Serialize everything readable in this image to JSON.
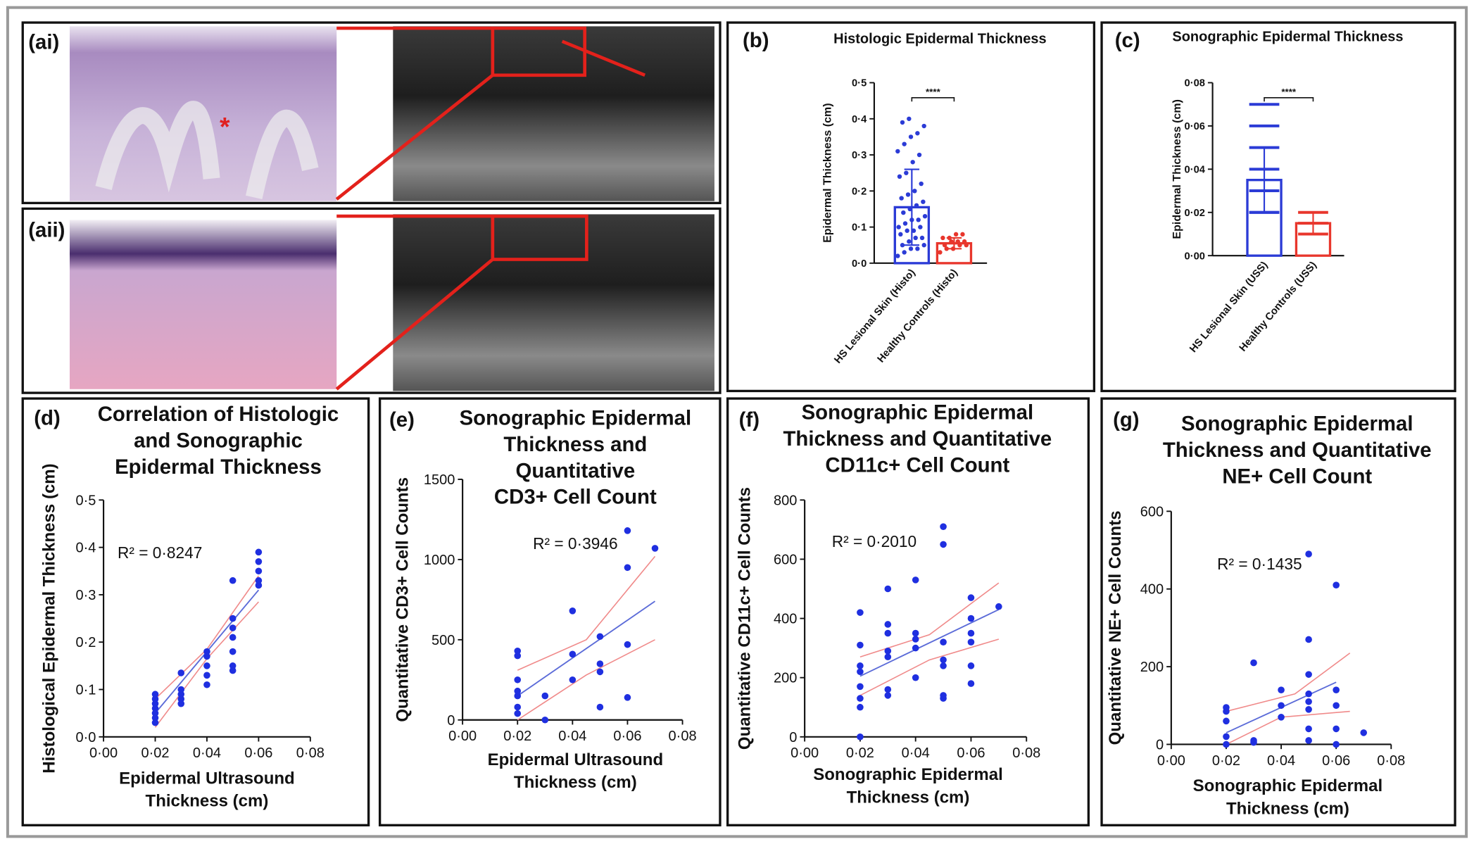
{
  "images": [
    {
      "label": "(ai)"
    },
    {
      "label": "(aii)"
    }
  ],
  "chart_data": [
    {
      "type": "bar",
      "panel_label": "(b)",
      "title": [
        "Histologic Epidermal Thickness"
      ],
      "y_label": "Epidermal Thickness (cm)",
      "categories": [
        "HS Lesional Skin (Histo)",
        "Healthy Controls (Histo)"
      ],
      "values": [
        0.155,
        0.055
      ],
      "errors": [
        0.105,
        0.015
      ],
      "points": [
        [
          0.02,
          0.03,
          0.04,
          0.04,
          0.05,
          0.05,
          0.06,
          0.07,
          0.07,
          0.08,
          0.09,
          0.09,
          0.1,
          0.1,
          0.11,
          0.12,
          0.12,
          0.13,
          0.14,
          0.15,
          0.16,
          0.17,
          0.18,
          0.19,
          0.2,
          0.22,
          0.24,
          0.25,
          0.28,
          0.3,
          0.31,
          0.33,
          0.35,
          0.36,
          0.38,
          0.39,
          0.4
        ],
        [
          0.03,
          0.04,
          0.04,
          0.05,
          0.05,
          0.05,
          0.06,
          0.06,
          0.06,
          0.07,
          0.07,
          0.08,
          0.08
        ]
      ],
      "point_style": "dot",
      "colors": [
        "#2b3bd6",
        "#e8362c"
      ],
      "significance": "****",
      "ylim": [
        0,
        0.5
      ],
      "yticks": [
        {
          "value": 0,
          "label": "0·0"
        },
        {
          "value": 0.1,
          "label": "0·1"
        },
        {
          "value": 0.2,
          "label": "0·2"
        },
        {
          "value": 0.3,
          "label": "0·3"
        },
        {
          "value": 0.4,
          "label": "0·4"
        },
        {
          "value": 0.5,
          "label": "0·5"
        }
      ]
    },
    {
      "type": "bar",
      "panel_label": "(c)",
      "title": [
        "Sonographic Epidermal Thickness"
      ],
      "y_label": "Epidermal Thickness (cm)",
      "categories": [
        "HS Lesional Skin (USS)",
        "Healthy Controls (USS)"
      ],
      "values": [
        0.035,
        0.015
      ],
      "errors": [
        0.015,
        0.005
      ],
      "points": [
        [
          0.02,
          0.02,
          0.03,
          0.04,
          0.05,
          0.06,
          0.07
        ],
        [
          0.01,
          0.015,
          0.02
        ]
      ],
      "point_style": "dash",
      "colors": [
        "#2b3bd6",
        "#e8362c"
      ],
      "significance": "****",
      "ylim": [
        0,
        0.08
      ],
      "yticks": [
        {
          "value": 0,
          "label": "0·00"
        },
        {
          "value": 0.02,
          "label": "0·02"
        },
        {
          "value": 0.04,
          "label": "0·04"
        },
        {
          "value": 0.06,
          "label": "0·06"
        },
        {
          "value": 0.08,
          "label": "0·08"
        }
      ]
    },
    {
      "type": "scatter",
      "panel_label": "(d)",
      "title": [
        "Correlation of Histologic",
        "and Sonographic",
        "Epidermal Thickness"
      ],
      "x_label": [
        "Epidermal Ultrasound",
        "Thickness (cm)"
      ],
      "y_label": "Histological Epidermal Thickness (cm)",
      "annotation": "R² = 0·8247",
      "color": "#1f2fe0",
      "x": [
        0.02,
        0.02,
        0.02,
        0.02,
        0.02,
        0.02,
        0.02,
        0.03,
        0.03,
        0.03,
        0.03,
        0.03,
        0.04,
        0.04,
        0.04,
        0.04,
        0.04,
        0.05,
        0.05,
        0.05,
        0.05,
        0.05,
        0.05,
        0.05,
        0.06,
        0.06,
        0.06,
        0.06,
        0.06
      ],
      "y": [
        0.03,
        0.04,
        0.05,
        0.06,
        0.07,
        0.08,
        0.09,
        0.07,
        0.08,
        0.09,
        0.1,
        0.135,
        0.11,
        0.13,
        0.15,
        0.17,
        0.18,
        0.14,
        0.15,
        0.18,
        0.21,
        0.23,
        0.25,
        0.33,
        0.32,
        0.33,
        0.35,
        0.37,
        0.39
      ],
      "fit": {
        "x": [
          0.02,
          0.06
        ],
        "y": [
          0.05,
          0.31
        ],
        "color": "#5b6bd8"
      },
      "ci": [
        {
          "x": [
            0.02,
            0.04,
            0.06
          ],
          "y": [
            0.08,
            0.185,
            0.34
          ],
          "color": "#f08a8a"
        },
        {
          "x": [
            0.02,
            0.04,
            0.06
          ],
          "y": [
            0.02,
            0.165,
            0.285
          ],
          "color": "#f08a8a"
        }
      ],
      "xlim": [
        0,
        0.08
      ],
      "ylim": [
        0,
        0.5
      ],
      "xticks": [
        {
          "value": 0,
          "label": "0·00"
        },
        {
          "value": 0.02,
          "label": "0·02"
        },
        {
          "value": 0.04,
          "label": "0·04"
        },
        {
          "value": 0.06,
          "label": "0·06"
        },
        {
          "value": 0.08,
          "label": "0·08"
        }
      ],
      "yticks": [
        {
          "value": 0,
          "label": "0·0"
        },
        {
          "value": 0.1,
          "label": "0·1"
        },
        {
          "value": 0.2,
          "label": "0·2"
        },
        {
          "value": 0.3,
          "label": "0·3"
        },
        {
          "value": 0.4,
          "label": "0·4"
        },
        {
          "value": 0.5,
          "label": "0·5"
        }
      ]
    },
    {
      "type": "scatter",
      "panel_label": "(e)",
      "title": [
        "Sonographic Epidermal",
        "Thickness and",
        "Quantitative",
        "CD3+ Cell Count"
      ],
      "x_label": [
        "Epidermal Ultrasound",
        "Thickness (cm)"
      ],
      "y_label": "Quantitative CD3+ Cell Counts",
      "annotation": "R² = 0·3946",
      "color": "#1f2fe0",
      "x": [
        0.02,
        0.02,
        0.02,
        0.02,
        0.02,
        0.02,
        0.02,
        0.03,
        0.03,
        0.04,
        0.04,
        0.04,
        0.05,
        0.05,
        0.05,
        0.05,
        0.06,
        0.06,
        0.06,
        0.06,
        0.07
      ],
      "y": [
        40,
        80,
        150,
        180,
        250,
        400,
        430,
        0,
        150,
        250,
        410,
        680,
        80,
        300,
        350,
        520,
        140,
        470,
        950,
        1180,
        1070
      ],
      "fit": {
        "x": [
          0.02,
          0.07
        ],
        "y": [
          150,
          740
        ],
        "color": "#5b6bd8"
      },
      "ci": [
        {
          "x": [
            0.02,
            0.045,
            0.07
          ],
          "y": [
            310,
            500,
            1020
          ],
          "color": "#f08a8a"
        },
        {
          "x": [
            0.02,
            0.045,
            0.07
          ],
          "y": [
            0,
            280,
            500
          ],
          "color": "#f08a8a"
        }
      ],
      "xlim": [
        0,
        0.08
      ],
      "ylim": [
        0,
        1500
      ],
      "xticks": [
        {
          "value": 0,
          "label": "0·00"
        },
        {
          "value": 0.02,
          "label": "0·02"
        },
        {
          "value": 0.04,
          "label": "0·04"
        },
        {
          "value": 0.06,
          "label": "0·06"
        },
        {
          "value": 0.08,
          "label": "0·08"
        }
      ],
      "yticks": [
        0,
        500,
        1000,
        1500
      ]
    },
    {
      "type": "scatter",
      "panel_label": "(f)",
      "title": [
        "Sonographic Epidermal",
        "Thickness and Quantitative",
        "CD11c+ Cell Count"
      ],
      "x_label": [
        "Sonographic Epidermal",
        "Thickness (cm)"
      ],
      "y_label": "Quantitative CD11c+ Cell Counts",
      "annotation": "R² = 0·2010",
      "color": "#1f2fe0",
      "x": [
        0.02,
        0.02,
        0.02,
        0.02,
        0.02,
        0.02,
        0.02,
        0.02,
        0.03,
        0.03,
        0.03,
        0.03,
        0.03,
        0.03,
        0.03,
        0.04,
        0.04,
        0.04,
        0.04,
        0.04,
        0.05,
        0.05,
        0.05,
        0.05,
        0.05,
        0.05,
        0.05,
        0.06,
        0.06,
        0.06,
        0.06,
        0.06,
        0.06,
        0.07
      ],
      "y": [
        0,
        100,
        130,
        170,
        220,
        240,
        310,
        420,
        140,
        160,
        270,
        290,
        350,
        380,
        500,
        200,
        300,
        330,
        350,
        530,
        130,
        140,
        240,
        260,
        320,
        650,
        710,
        180,
        240,
        320,
        350,
        400,
        470,
        440
      ],
      "fit": {
        "x": [
          0.02,
          0.07
        ],
        "y": [
          205,
          430
        ],
        "color": "#5b6bd8"
      },
      "ci": [
        {
          "x": [
            0.02,
            0.045,
            0.07
          ],
          "y": [
            270,
            345,
            520
          ],
          "color": "#f08a8a"
        },
        {
          "x": [
            0.02,
            0.045,
            0.07
          ],
          "y": [
            140,
            260,
            330
          ],
          "color": "#f08a8a"
        }
      ],
      "xlim": [
        0,
        0.08
      ],
      "ylim": [
        0,
        800
      ],
      "xticks": [
        {
          "value": 0,
          "label": "0·00"
        },
        {
          "value": 0.02,
          "label": "0·02"
        },
        {
          "value": 0.04,
          "label": "0·04"
        },
        {
          "value": 0.06,
          "label": "0·06"
        },
        {
          "value": 0.08,
          "label": "0·08"
        }
      ],
      "yticks": [
        0,
        200,
        400,
        600,
        800
      ]
    },
    {
      "type": "scatter",
      "panel_label": "(g)",
      "title": [
        "Sonographic Epidermal",
        "Thickness and Quantitative",
        "NE+ Cell Count"
      ],
      "x_label": [
        "Sonographic Epidermal",
        "Thickness (cm)"
      ],
      "y_label": "Quantitative NE+ Cell Counts",
      "annotation": "R² = 0·1435",
      "color": "#1f2fe0",
      "x": [
        0.02,
        0.02,
        0.02,
        0.02,
        0.02,
        0.03,
        0.03,
        0.03,
        0.04,
        0.04,
        0.04,
        0.05,
        0.05,
        0.05,
        0.05,
        0.05,
        0.05,
        0.05,
        0.05,
        0.06,
        0.06,
        0.06,
        0.06,
        0.06,
        0.07
      ],
      "y": [
        0,
        20,
        60,
        85,
        95,
        5,
        10,
        210,
        70,
        100,
        140,
        10,
        40,
        90,
        110,
        130,
        180,
        270,
        490,
        0,
        40,
        100,
        140,
        410,
        30
      ],
      "fit": {
        "x": [
          0.02,
          0.06
        ],
        "y": [
          30,
          160
        ],
        "color": "#5b6bd8"
      },
      "ci": [
        {
          "x": [
            0.02,
            0.045,
            0.065
          ],
          "y": [
            85,
            130,
            235
          ],
          "color": "#f08a8a"
        },
        {
          "x": [
            0.02,
            0.04,
            0.065
          ],
          "y": [
            0,
            70,
            85
          ],
          "color": "#f08a8a"
        }
      ],
      "xlim": [
        0,
        0.08
      ],
      "ylim": [
        0,
        600
      ],
      "xticks": [
        {
          "value": 0,
          "label": "0·00"
        },
        {
          "value": 0.02,
          "label": "0·02"
        },
        {
          "value": 0.04,
          "label": "0·04"
        },
        {
          "value": 0.06,
          "label": "0·06"
        },
        {
          "value": 0.08,
          "label": "0·08"
        }
      ],
      "yticks": [
        0,
        200,
        400,
        600
      ]
    }
  ]
}
